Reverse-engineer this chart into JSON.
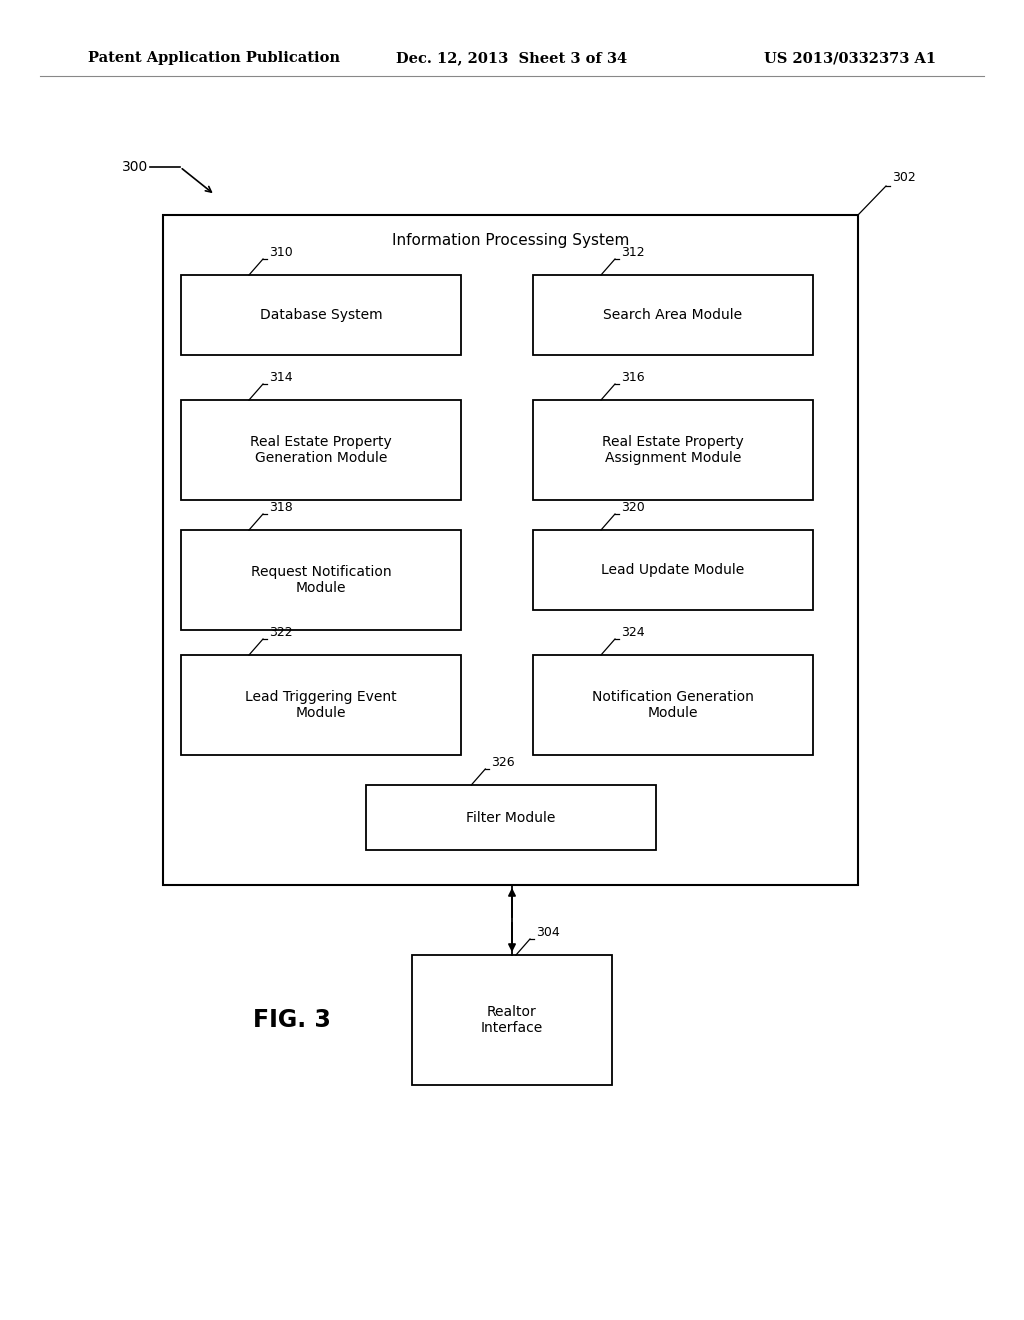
{
  "bg_color": "#ffffff",
  "text_color": "#000000",
  "box_edge_color": "#000000",
  "page_header": {
    "left": "Patent Application Publication",
    "center": "Dec. 12, 2013  Sheet 3 of 34",
    "right": "US 2013/0332373 A1",
    "fontsize": 10.5
  },
  "fig_label": "FIG. 3",
  "fig_label_fontsize": 17,
  "diagram_ref": "300",
  "outer_box_ref": "302",
  "outer_box_label": "Information Processing System",
  "modules": [
    {
      "id": "310",
      "label": "Database System",
      "col": 0,
      "row": 0,
      "multiline": false
    },
    {
      "id": "312",
      "label": "Search Area Module",
      "col": 1,
      "row": 0,
      "multiline": false
    },
    {
      "id": "314",
      "label": "Real Estate Property\nGeneration Module",
      "col": 0,
      "row": 1,
      "multiline": true
    },
    {
      "id": "316",
      "label": "Real Estate Property\nAssignment Module",
      "col": 1,
      "row": 1,
      "multiline": true
    },
    {
      "id": "318",
      "label": "Request Notification\nModule",
      "col": 0,
      "row": 2,
      "multiline": true
    },
    {
      "id": "320",
      "label": "Lead Update Module",
      "col": 1,
      "row": 2,
      "multiline": false
    },
    {
      "id": "322",
      "label": "Lead Triggering Event\nModule",
      "col": 0,
      "row": 3,
      "multiline": true
    },
    {
      "id": "324",
      "label": "Notification Generation\nModule",
      "col": 1,
      "row": 3,
      "multiline": true
    }
  ],
  "filter_id": "326",
  "filter_label": "Filter Module",
  "realtor_id": "304",
  "realtor_label": "Realtor\nInterface",
  "fontsize_module": 10,
  "fontsize_id": 9
}
